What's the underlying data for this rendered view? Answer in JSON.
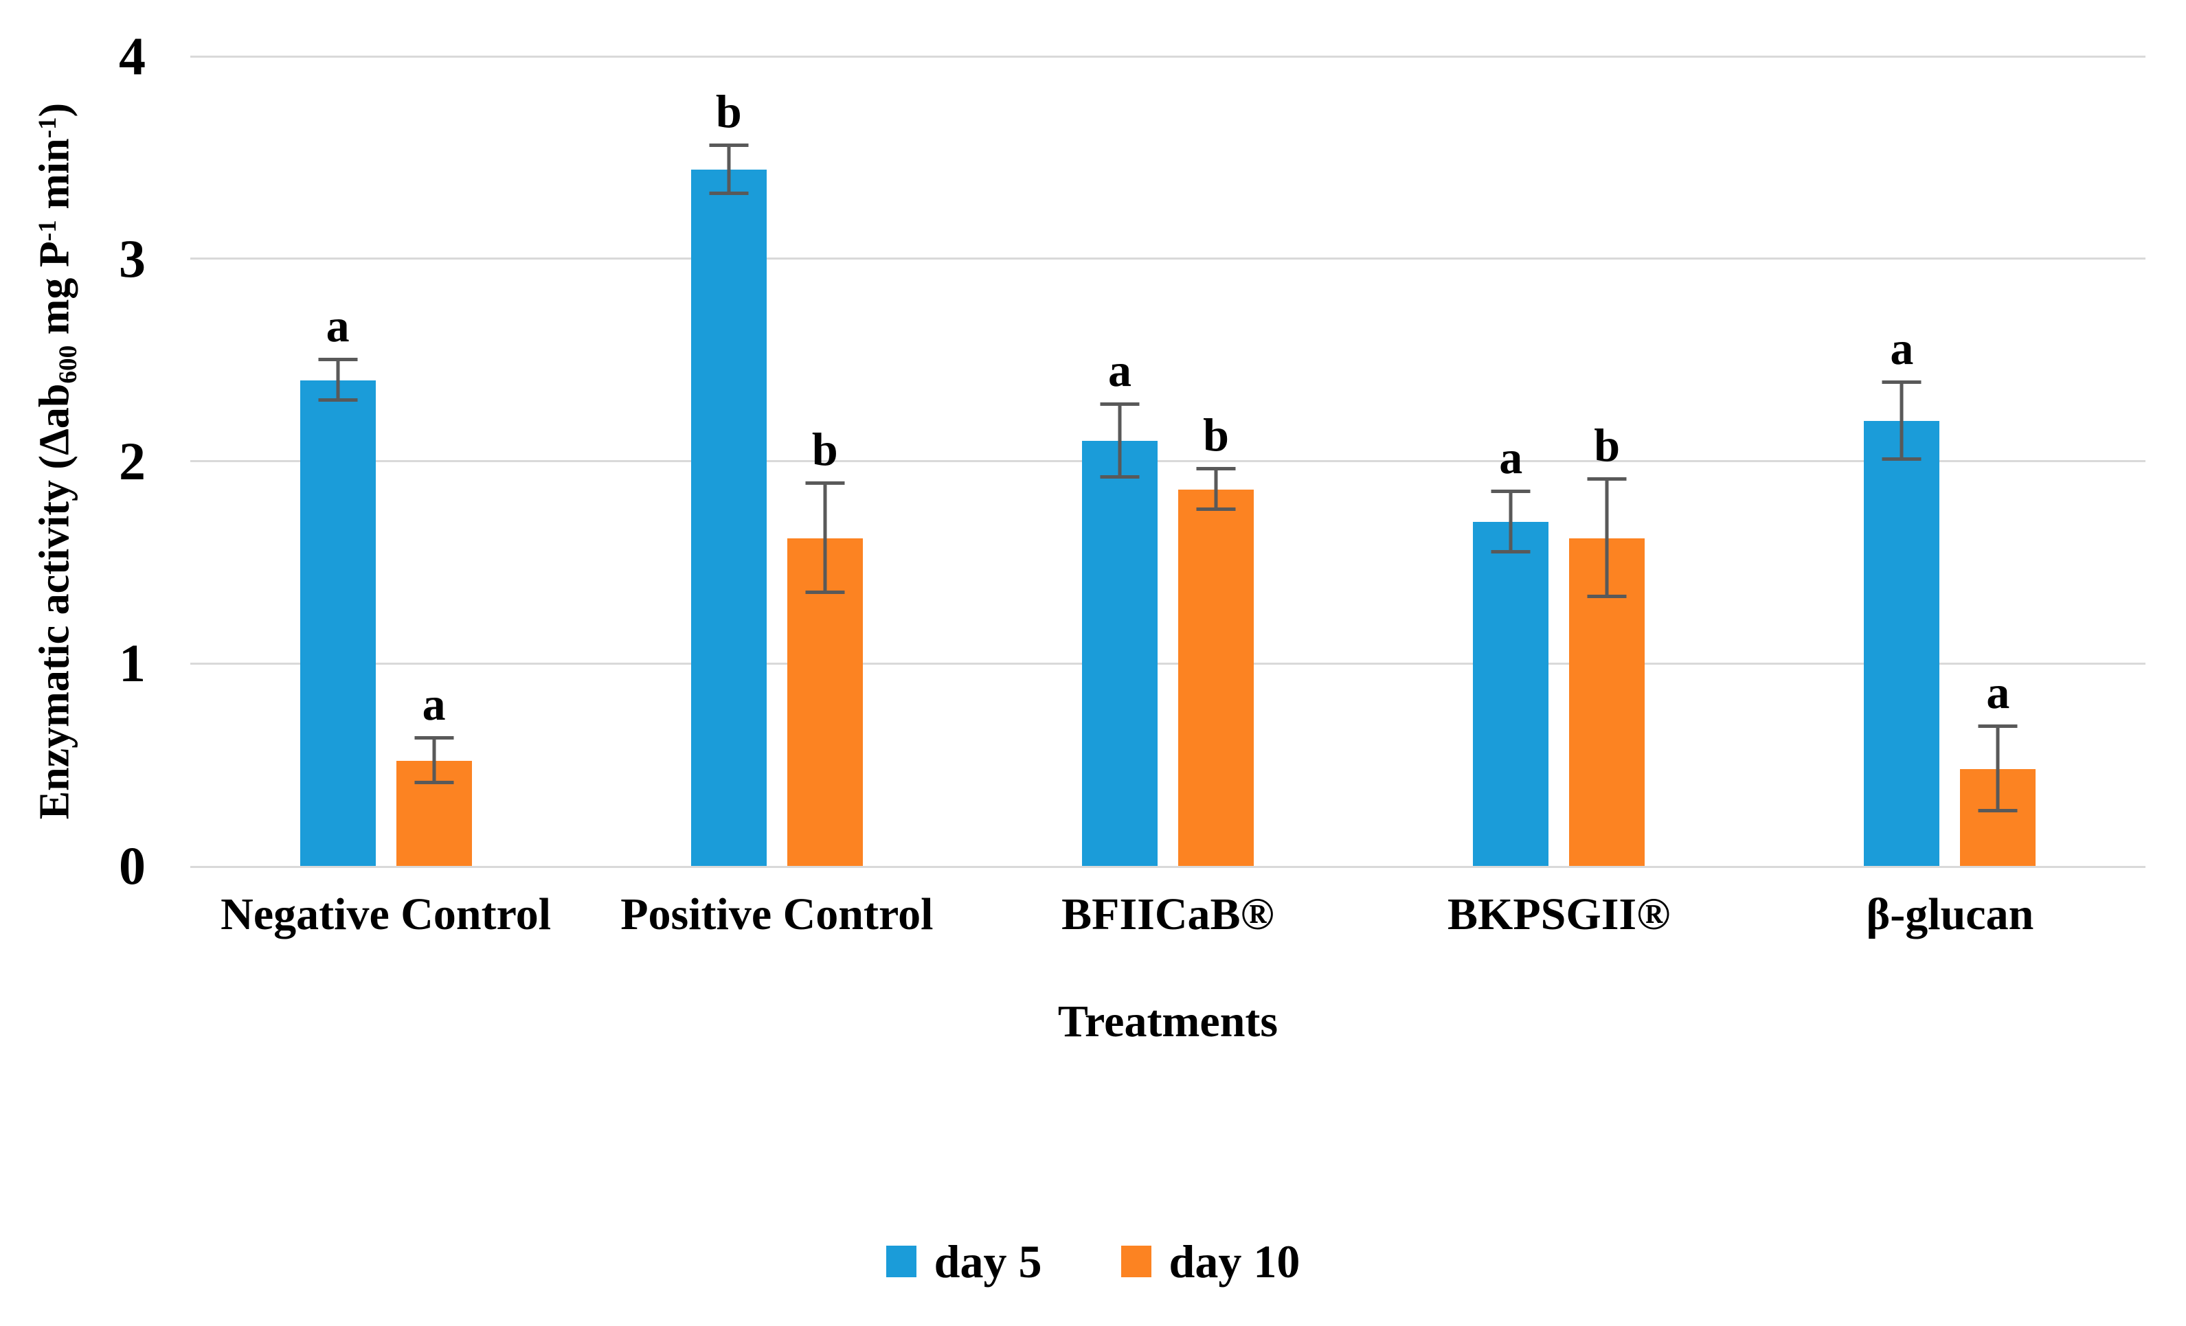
{
  "figure": {
    "background": "#ffffff",
    "text_color": "#000000"
  },
  "chart_data": {
    "type": "bar",
    "title": "",
    "xlabel": "Treatments",
    "ylabel": "Enzymatic activity (Δab600 mg P-1 min-1)",
    "ylabel_parts": {
      "p1": "Enzymatic activity (Δab",
      "sub": "600",
      "p2": " mg P",
      "sup1": "-1",
      "p3": " min",
      "sup2": "-1",
      "p4": ")"
    },
    "categories": [
      "Negative Control",
      "Positive Control",
      "BFIICaB®",
      "BKPSGII®",
      "β-glucan"
    ],
    "series": [
      {
        "name": "day 5",
        "color": "#1B9CD9",
        "values": [
          2.4,
          3.44,
          2.1,
          1.7,
          2.2
        ],
        "errors": [
          0.1,
          0.12,
          0.18,
          0.15,
          0.19
        ],
        "letters": [
          "a",
          "b",
          "a",
          "a",
          "a"
        ]
      },
      {
        "name": "day 10",
        "color": "#FC8322",
        "values": [
          0.52,
          1.62,
          1.86,
          1.62,
          0.48
        ],
        "errors": [
          0.11,
          0.27,
          0.1,
          0.29,
          0.21
        ],
        "letters": [
          "a",
          "b",
          "b",
          "b",
          "a"
        ]
      }
    ],
    "ylim": [
      0,
      4
    ],
    "yticks": [
      0,
      1,
      2,
      3,
      4
    ],
    "grid": true,
    "legend_position": "bottom",
    "gridline_color": "#d9d9d9",
    "error_bar_color": "#595959"
  }
}
